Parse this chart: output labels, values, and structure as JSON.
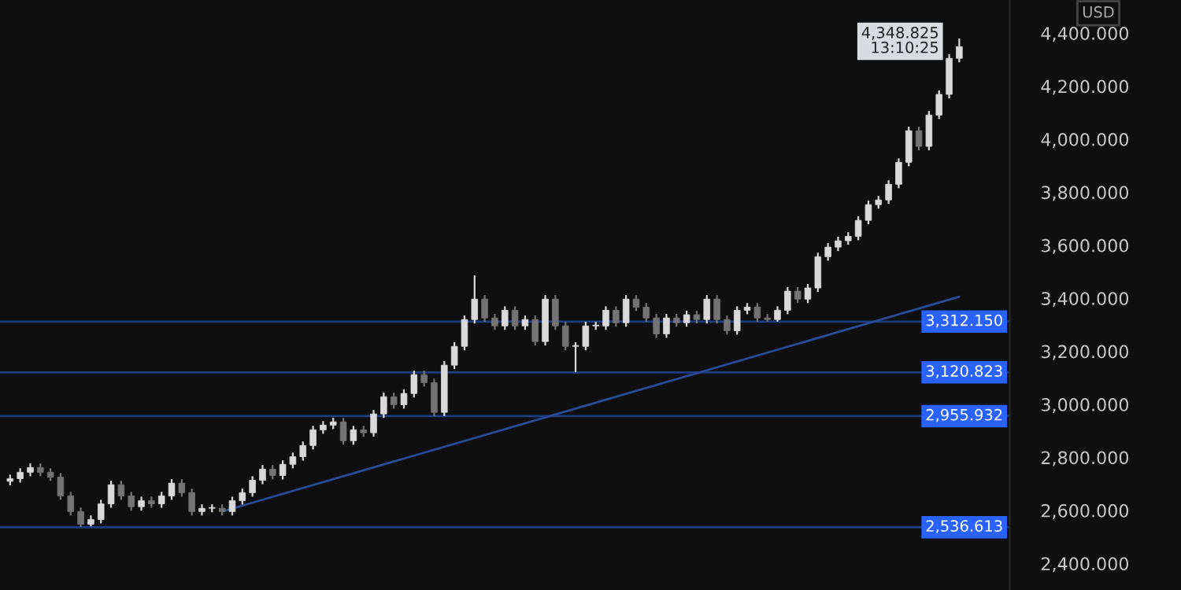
{
  "chart_data": {
    "type": "candlestick",
    "ylabel": "USD",
    "tick_labels": "y",
    "grid": false,
    "legend": false,
    "categories": [
      null,
      null,
      null,
      null,
      null,
      null,
      null,
      null,
      null,
      null,
      null,
      null,
      null,
      null,
      null,
      null,
      null,
      null,
      null,
      null,
      null,
      null,
      null,
      null,
      null,
      null,
      null,
      null,
      null,
      null,
      null,
      null,
      null,
      null,
      null,
      null,
      null,
      null,
      null,
      null,
      null,
      null,
      null,
      null,
      null,
      null,
      null,
      null,
      null,
      null,
      null,
      null,
      null,
      null,
      null,
      null,
      null,
      null,
      null,
      null,
      null,
      null,
      null,
      null,
      null,
      null,
      null,
      null,
      null,
      null,
      null,
      null,
      null,
      null,
      null,
      null,
      null,
      null,
      null,
      null,
      null,
      null,
      null,
      null,
      null,
      null,
      null,
      null,
      null,
      null,
      null,
      null,
      null,
      null,
      null
    ],
    "colors": [
      "#d9d9d9",
      "#d9d9d9",
      "#d9d9d9",
      "#747474",
      "#747474",
      "#747474",
      "#747474",
      "#747474",
      "#d9d9d9",
      "#d9d9d9",
      "#d9d9d9",
      "#747474",
      "#747474",
      "#d9d9d9",
      "#747474",
      "#d9d9d9",
      "#d9d9d9",
      "#747474",
      "#747474",
      "#d9d9d9",
      "#d9d9d9",
      "#747474",
      "#d9d9d9",
      "#d9d9d9",
      "#d9d9d9",
      "#d9d9d9",
      "#747474",
      "#d9d9d9",
      "#d9d9d9",
      "#d9d9d9",
      "#d9d9d9",
      "#d9d9d9",
      "#d9d9d9",
      "#747474",
      "#d9d9d9",
      "#747474",
      "#d9d9d9",
      "#d9d9d9",
      "#747474",
      "#d9d9d9",
      "#d9d9d9",
      "#747474",
      "#747474",
      "#d9d9d9",
      "#d9d9d9",
      "#d9d9d9",
      "#d9d9d9",
      "#747474",
      "#747474",
      "#d9d9d9",
      "#747474",
      "#d9d9d9",
      "#747474",
      "#d9d9d9",
      "#747474",
      "#747474",
      "#d9d9d9",
      "#d9d9d9",
      "#d9d9d9",
      "#d9d9d9",
      "#747474",
      "#d9d9d9",
      "#747474",
      "#747474",
      "#747474",
      "#d9d9d9",
      "#747474",
      "#d9d9d9",
      "#747474",
      "#d9d9d9",
      "#747474",
      "#747474",
      "#d9d9d9",
      "#d9d9d9",
      "#747474",
      "#747474",
      "#d9d9d9",
      "#d9d9d9",
      "#747474",
      "#d9d9d9",
      "#d9d9d9",
      "#d9d9d9",
      "#d9d9d9",
      "#d9d9d9",
      "#d9d9d9",
      "#d9d9d9",
      "#d9d9d9",
      "#d9d9d9",
      "#d9d9d9",
      "#d9d9d9",
      "#747474",
      "#d9d9d9",
      "#d9d9d9",
      "#d9d9d9",
      "#d9d9d9"
    ],
    "ohlc": [
      [
        2710,
        2735,
        2695,
        2720
      ],
      [
        2720,
        2759,
        2705,
        2744
      ],
      [
        2744,
        2777,
        2729,
        2762
      ],
      [
        2762,
        2777,
        2729,
        2744
      ],
      [
        2744,
        2759,
        2711,
        2726
      ],
      [
        2726,
        2741,
        2640,
        2655
      ],
      [
        2655,
        2670,
        2581,
        2596
      ],
      [
        2596,
        2611,
        2537,
        2548
      ],
      [
        2548,
        2581,
        2540,
        2566
      ],
      [
        2566,
        2640,
        2551,
        2625
      ],
      [
        2625,
        2712,
        2610,
        2697
      ],
      [
        2697,
        2712,
        2640,
        2655
      ],
      [
        2655,
        2670,
        2599,
        2614
      ],
      [
        2614,
        2652,
        2599,
        2637
      ],
      [
        2637,
        2652,
        2610,
        2625
      ],
      [
        2625,
        2670,
        2610,
        2655
      ],
      [
        2655,
        2718,
        2640,
        2703
      ],
      [
        2703,
        2718,
        2652,
        2667
      ],
      [
        2667,
        2682,
        2581,
        2596
      ],
      [
        2596,
        2623,
        2581,
        2608
      ],
      [
        2608,
        2623,
        2593,
        2608
      ],
      [
        2608,
        2623,
        2581,
        2596
      ],
      [
        2596,
        2652,
        2581,
        2637
      ],
      [
        2637,
        2682,
        2622,
        2667
      ],
      [
        2667,
        2729,
        2652,
        2714
      ],
      [
        2714,
        2771,
        2699,
        2756
      ],
      [
        2756,
        2771,
        2717,
        2732
      ],
      [
        2732,
        2789,
        2717,
        2774
      ],
      [
        2774,
        2818,
        2759,
        2803
      ],
      [
        2803,
        2860,
        2788,
        2845
      ],
      [
        2845,
        2919,
        2830,
        2904
      ],
      [
        2904,
        2937,
        2889,
        2922
      ],
      [
        2922,
        2949,
        2907,
        2934
      ],
      [
        2934,
        2949,
        2848,
        2863
      ],
      [
        2863,
        2919,
        2848,
        2904
      ],
      [
        2904,
        2919,
        2878,
        2893
      ],
      [
        2893,
        2979,
        2878,
        2964
      ],
      [
        2964,
        3044,
        2949,
        3029
      ],
      [
        3029,
        3044,
        2984,
        2999
      ],
      [
        2999,
        3056,
        2984,
        3041
      ],
      [
        3041,
        3127,
        3026,
        3112
      ],
      [
        3112,
        3127,
        3067,
        3082
      ],
      [
        3082,
        3097,
        2956,
        2970
      ],
      [
        2970,
        3163,
        2956,
        3148
      ],
      [
        3148,
        3234,
        3133,
        3219
      ],
      [
        3219,
        3335,
        3204,
        3320
      ],
      [
        3320,
        3486,
        3305,
        3397
      ],
      [
        3397,
        3412,
        3311,
        3326
      ],
      [
        3326,
        3341,
        3281,
        3296
      ],
      [
        3296,
        3370,
        3281,
        3355
      ],
      [
        3355,
        3370,
        3281,
        3296
      ],
      [
        3296,
        3335,
        3281,
        3320
      ],
      [
        3320,
        3335,
        3222,
        3237
      ],
      [
        3237,
        3412,
        3222,
        3397
      ],
      [
        3397,
        3412,
        3281,
        3296
      ],
      [
        3296,
        3311,
        3204,
        3219
      ],
      [
        3219,
        3234,
        3121,
        3219
      ],
      [
        3219,
        3311,
        3204,
        3296
      ],
      [
        3296,
        3311,
        3281,
        3296
      ],
      [
        3296,
        3370,
        3281,
        3355
      ],
      [
        3355,
        3370,
        3293,
        3308
      ],
      [
        3308,
        3412,
        3293,
        3397
      ],
      [
        3397,
        3412,
        3352,
        3367
      ],
      [
        3367,
        3382,
        3311,
        3326
      ],
      [
        3326,
        3341,
        3251,
        3266
      ],
      [
        3266,
        3341,
        3251,
        3326
      ],
      [
        3326,
        3341,
        3293,
        3308
      ],
      [
        3308,
        3353,
        3293,
        3338
      ],
      [
        3338,
        3353,
        3305,
        3320
      ],
      [
        3320,
        3412,
        3305,
        3397
      ],
      [
        3397,
        3412,
        3305,
        3320
      ],
      [
        3320,
        3335,
        3263,
        3278
      ],
      [
        3278,
        3370,
        3263,
        3355
      ],
      [
        3355,
        3382,
        3340,
        3367
      ],
      [
        3367,
        3382,
        3311,
        3326
      ],
      [
        3326,
        3341,
        3312,
        3320
      ],
      [
        3320,
        3370,
        3312,
        3355
      ],
      [
        3355,
        3442,
        3340,
        3427
      ],
      [
        3427,
        3442,
        3382,
        3397
      ],
      [
        3397,
        3454,
        3382,
        3439
      ],
      [
        3439,
        3572,
        3424,
        3557
      ],
      [
        3557,
        3608,
        3542,
        3593
      ],
      [
        3593,
        3632,
        3578,
        3617
      ],
      [
        3617,
        3649,
        3602,
        3634
      ],
      [
        3634,
        3709,
        3619,
        3694
      ],
      [
        3694,
        3768,
        3679,
        3753
      ],
      [
        3753,
        3786,
        3738,
        3771
      ],
      [
        3771,
        3845,
        3756,
        3830
      ],
      [
        3830,
        3928,
        3815,
        3913
      ],
      [
        3913,
        4047,
        3898,
        4032
      ],
      [
        4032,
        4047,
        3958,
        3973
      ],
      [
        3973,
        4106,
        3958,
        4091
      ],
      [
        4091,
        4184,
        4076,
        4169
      ],
      [
        4169,
        4320,
        4154,
        4305
      ],
      [
        4305,
        4380,
        4290,
        4349
      ]
    ],
    "series": [
      {
        "type": "line",
        "values": [
          null,
          null,
          null,
          null,
          null,
          null,
          null,
          null,
          null,
          null,
          null,
          null,
          null,
          null,
          null,
          null,
          null,
          null,
          null,
          null,
          null,
          2596,
          null,
          null,
          null,
          null,
          null,
          null,
          null,
          null,
          null,
          null,
          null,
          null,
          null,
          null,
          null,
          null,
          null,
          null,
          null,
          null,
          null,
          null,
          null,
          null,
          null,
          null,
          null,
          null,
          null,
          null,
          null,
          null,
          null,
          null,
          null,
          null,
          null,
          null,
          null,
          null,
          null,
          null,
          null,
          null,
          null,
          null,
          null,
          null,
          null,
          null,
          null,
          null,
          null,
          null,
          null,
          null,
          null,
          null,
          null,
          null,
          null,
          null,
          null,
          null,
          null,
          null,
          null,
          null,
          null,
          null,
          null,
          null,
          3406
        ],
        "color": "#2a4a9a"
      }
    ],
    "ylim": [
      2300,
      4525
    ],
    "yticks": [
      {
        "value": 2400,
        "label": "2,400.000"
      },
      {
        "value": 2600,
        "label": "2,600.000"
      },
      {
        "value": 2800,
        "label": "2,800.000"
      },
      {
        "value": 3000,
        "label": "3,000.000"
      },
      {
        "value": 3200,
        "label": "3,200.000"
      },
      {
        "value": 3400,
        "label": "3,400.000"
      },
      {
        "value": 3600,
        "label": "3,600.000"
      },
      {
        "value": 3800,
        "label": "3,800.000"
      },
      {
        "value": 4000,
        "label": "4,000.000"
      },
      {
        "value": 4200,
        "label": "4,200.000"
      },
      {
        "value": 4400,
        "label": "4,400.000"
      }
    ],
    "ref_lines": [
      {
        "axis": "y",
        "value": 3312.15,
        "label": "3,312.150",
        "color": "#1e3c80"
      },
      {
        "axis": "y",
        "value": 3120.823,
        "label": "3,120.823",
        "color": "#1e3c80"
      },
      {
        "axis": "y",
        "value": 2955.932,
        "label": "2,955.932",
        "color": "#1e3c80"
      },
      {
        "axis": "y",
        "value": 2536.613,
        "label": "2,536.613",
        "color": "#1e3c80"
      }
    ],
    "annotations": [
      "4,348.825\n13:10:25"
    ]
  }
}
